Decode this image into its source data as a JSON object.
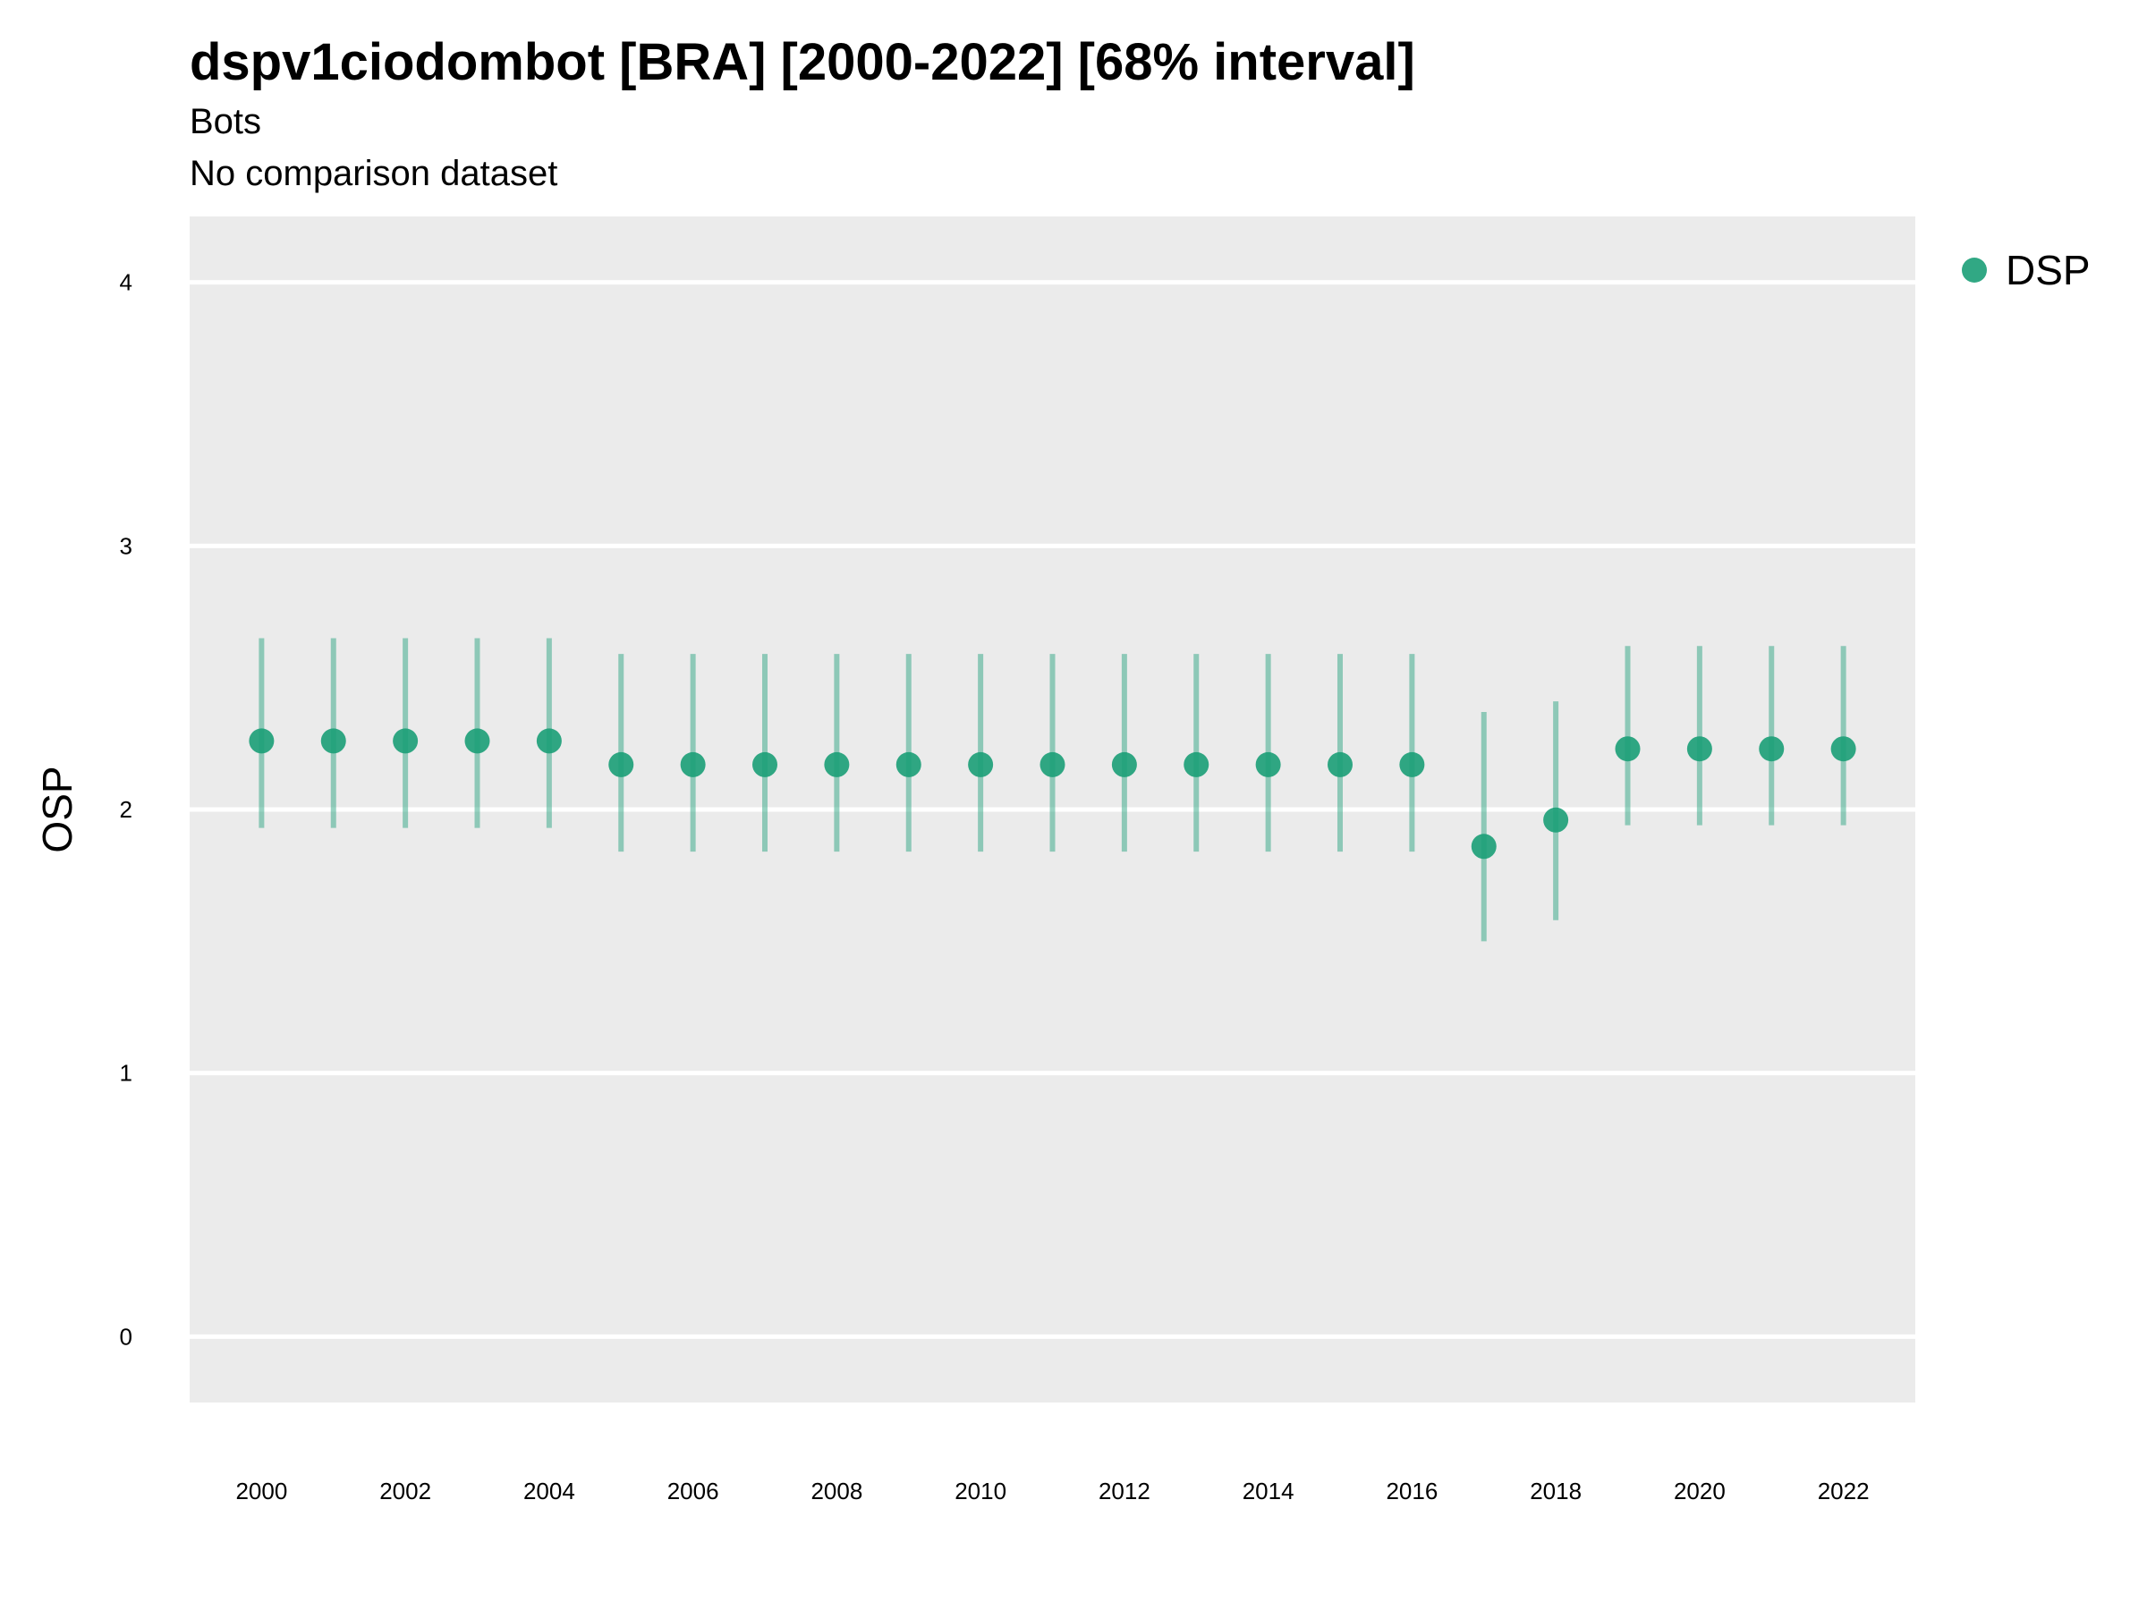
{
  "chart_data": {
    "type": "scatter",
    "title": "dspv1ciodombot [BRA] [2000-2022] [68% interval]",
    "subtitle": "Bots",
    "caption": "No comparison dataset",
    "xlabel": "",
    "ylabel": "OSP",
    "xlim": [
      1999.0,
      2023.0
    ],
    "ylim": [
      -0.25,
      4.25
    ],
    "x_ticks": [
      2000,
      2002,
      2004,
      2006,
      2008,
      2010,
      2012,
      2014,
      2016,
      2018,
      2020,
      2022
    ],
    "y_ticks": [
      0,
      1,
      2,
      3,
      4
    ],
    "grid": true,
    "legend_position": "right",
    "series": [
      {
        "name": "DSP",
        "color": "#1b9e77",
        "x": [
          2000,
          2001,
          2002,
          2003,
          2004,
          2005,
          2006,
          2007,
          2008,
          2009,
          2010,
          2011,
          2012,
          2013,
          2014,
          2015,
          2016,
          2017,
          2018,
          2019,
          2020,
          2021,
          2022
        ],
        "y": [
          2.26,
          2.26,
          2.26,
          2.26,
          2.26,
          2.17,
          2.17,
          2.17,
          2.17,
          2.17,
          2.17,
          2.17,
          2.17,
          2.17,
          2.17,
          2.17,
          2.17,
          1.86,
          1.96,
          2.23,
          2.23,
          2.23,
          2.23
        ],
        "lower": [
          1.93,
          1.93,
          1.93,
          1.93,
          1.93,
          1.84,
          1.84,
          1.84,
          1.84,
          1.84,
          1.84,
          1.84,
          1.84,
          1.84,
          1.84,
          1.84,
          1.84,
          1.5,
          1.58,
          1.94,
          1.94,
          1.94,
          1.94
        ],
        "upper": [
          2.65,
          2.65,
          2.65,
          2.65,
          2.65,
          2.59,
          2.59,
          2.59,
          2.59,
          2.59,
          2.59,
          2.59,
          2.59,
          2.59,
          2.59,
          2.59,
          2.59,
          2.37,
          2.41,
          2.62,
          2.62,
          2.62,
          2.62
        ]
      }
    ]
  }
}
